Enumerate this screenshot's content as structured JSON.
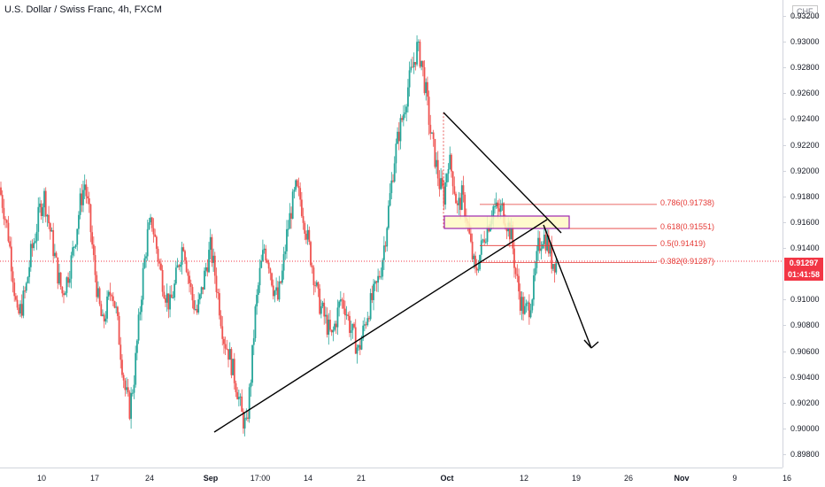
{
  "header": {
    "symbol_title": "U.S. Dollar / Swiss Franc, 4h, FXCM",
    "currency": "CHF"
  },
  "price_axis": {
    "labels": [
      "0.93200",
      "0.93000",
      "0.92800",
      "0.92600",
      "0.92400",
      "0.92200",
      "0.92000",
      "0.91800",
      "0.91600",
      "0.91400",
      "0.91000",
      "0.90800",
      "0.90600",
      "0.90400",
      "0.90200",
      "0.90000",
      "0.89800"
    ],
    "values": [
      0.932,
      0.93,
      0.928,
      0.926,
      0.924,
      0.922,
      0.92,
      0.918,
      0.916,
      0.914,
      0.91,
      0.908,
      0.906,
      0.904,
      0.902,
      0.9,
      0.898
    ]
  },
  "time_axis": {
    "labels": [
      {
        "text": "10",
        "bold": false
      },
      {
        "text": "17",
        "bold": false
      },
      {
        "text": "24",
        "bold": false
      },
      {
        "text": "Sep",
        "bold": true
      },
      {
        "text": "17:00",
        "bold": false
      },
      {
        "text": "14",
        "bold": false
      },
      {
        "text": "21",
        "bold": false
      },
      {
        "text": "Oct",
        "bold": true
      },
      {
        "text": "12",
        "bold": false
      },
      {
        "text": "19",
        "bold": false
      },
      {
        "text": "26",
        "bold": false
      },
      {
        "text": "Nov",
        "bold": true
      },
      {
        "text": "9",
        "bold": false
      },
      {
        "text": "16",
        "bold": false
      }
    ]
  },
  "current_price": {
    "value_label": "0.91297",
    "countdown": "01:41:58",
    "value": 0.91297,
    "color": "#f23645"
  },
  "fibonacci": {
    "color": "#e53935",
    "levels": [
      {
        "label": "0.786(0.91738)",
        "value": 0.91738
      },
      {
        "label": "0.618(0.91551)",
        "value": 0.91551
      },
      {
        "label": "0.5(0.91419)",
        "value": 0.91419
      },
      {
        "label": "0.382(0.91287)",
        "value": 0.91287
      }
    ]
  },
  "colors": {
    "up": "#26a69a",
    "down": "#ef5350",
    "zone_fill": "#fff9c4",
    "zone_border": "#9c27b0",
    "trendline": "#000000"
  },
  "chart_data": {
    "type": "candlestick",
    "title": "U.S. Dollar / Swiss Franc, 4h, FXCM",
    "ylim": [
      0.8975,
      0.9325
    ],
    "close_path": [
      0.9187,
      0.917,
      0.915,
      0.912,
      0.9085,
      0.9095,
      0.911,
      0.9135,
      0.915,
      0.917,
      0.918,
      0.916,
      0.914,
      0.912,
      0.9105,
      0.9115,
      0.913,
      0.915,
      0.9175,
      0.919,
      0.9165,
      0.913,
      0.91,
      0.908,
      0.9095,
      0.911,
      0.909,
      0.906,
      0.903,
      0.9015,
      0.904,
      0.908,
      0.912,
      0.915,
      0.916,
      0.914,
      0.912,
      0.9105,
      0.9095,
      0.911,
      0.913,
      0.9145,
      0.912,
      0.91,
      0.909,
      0.9105,
      0.9125,
      0.914,
      0.912,
      0.9095,
      0.907,
      0.906,
      0.9045,
      0.903,
      0.901,
      0.9,
      0.904,
      0.909,
      0.912,
      0.914,
      0.913,
      0.911,
      0.91,
      0.912,
      0.915,
      0.917,
      0.9185,
      0.9178,
      0.916,
      0.914,
      0.912,
      0.91,
      0.909,
      0.908,
      0.907,
      0.9085,
      0.91,
      0.9095,
      0.908,
      0.907,
      0.906,
      0.9075,
      0.909,
      0.91,
      0.911,
      0.9125,
      0.915,
      0.918,
      0.921,
      0.923,
      0.9245,
      0.9265,
      0.928,
      0.9295,
      0.9285,
      0.926,
      0.923,
      0.921,
      0.919,
      0.918,
      0.921,
      0.9195,
      0.917,
      0.918,
      0.9165,
      0.914,
      0.912,
      0.9135,
      0.915,
      0.916,
      0.9172,
      0.9168,
      0.917,
      0.916,
      0.915,
      0.912,
      0.91,
      0.909,
      0.9095,
      0.911,
      0.914,
      0.915,
      0.9145,
      0.913,
      0.9129
    ]
  }
}
